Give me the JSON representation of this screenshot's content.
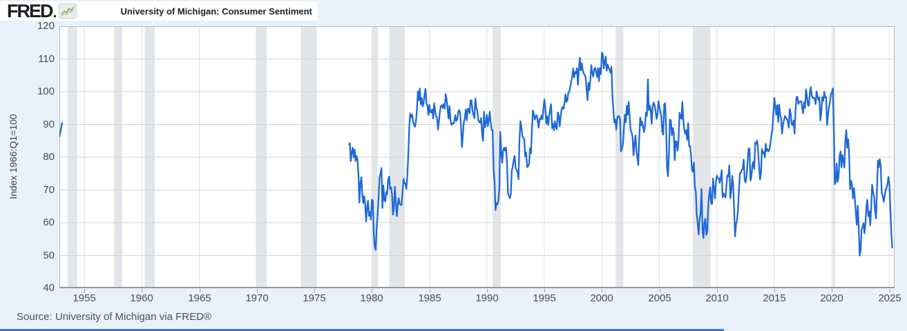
{
  "header": {
    "logo_text": "FRED"
  },
  "legend": {
    "label": "University of Michigan: Consumer Sentiment"
  },
  "footer": {
    "source": "Source: University of Michigan via FRED®"
  },
  "colors": {
    "line": "#1e69d6",
    "recession": "#e3e6e9",
    "grid_h": "#d4d4d4",
    "grid_v": "#e2e2e2",
    "frame": "#b4b8bb",
    "axis": "#94989b",
    "background": "#e9f1fa",
    "plot_background": "#ffffff",
    "spark_line": "#8ca05e"
  },
  "chart_data": {
    "type": "line",
    "title": "University of Michigan: Consumer Sentiment",
    "xlabel": "",
    "ylabel": "Index 1966:Q1=100",
    "x_domain": [
      1952.83,
      2025.45
    ],
    "ylim": [
      40,
      120
    ],
    "y_ticks": [
      40,
      50,
      60,
      70,
      80,
      90,
      100,
      110,
      120
    ],
    "x_ticks": [
      1955,
      1960,
      1965,
      1970,
      1975,
      1980,
      1985,
      1990,
      1995,
      2000,
      2005,
      2010,
      2015,
      2020,
      2025
    ],
    "grid": true,
    "legend_position": "top-left",
    "recessions": [
      [
        1953.54,
        1954.37
      ],
      [
        1957.58,
        1958.29
      ],
      [
        1960.25,
        1961.12
      ],
      [
        1969.92,
        1970.87
      ],
      [
        1973.83,
        1975.21
      ],
      [
        1980.0,
        1980.54
      ],
      [
        1981.5,
        1982.87
      ],
      [
        1990.5,
        1991.21
      ],
      [
        2001.17,
        2001.87
      ],
      [
        2007.92,
        2009.45
      ],
      [
        2020.08,
        2020.29
      ]
    ],
    "series": [
      {
        "name": "University of Michigan: Consumer Sentiment",
        "color": "#1e69d6",
        "segments": [
          {
            "start": 1952.833,
            "step": 0.25,
            "values": [
              86.2,
              90.7
            ]
          },
          {
            "start": 1978.0,
            "step": 0.0833333,
            "values": [
              83.7,
              84.3,
              78.8,
              81.6,
              82.9,
              80.0,
              82.4,
              78.8,
              80.4,
              79.3,
              75.0,
              66.1,
              72.1,
              73.9,
              68.4,
              66.0,
              68.1,
              65.8,
              60.4,
              64.5,
              66.7,
              62.1,
              63.3,
              61.0,
              67.0,
              66.9,
              56.5,
              52.7,
              51.7,
              58.7,
              62.3,
              67.3,
              73.7,
              75.0,
              76.7,
              64.5,
              71.4,
              66.9,
              66.5,
              69.4,
              68.7,
              73.1,
              74.1,
              70.3,
              70.8,
              68.7,
              62.5,
              64.3,
              71.0,
              66.5,
              62.0,
              65.5,
              67.5,
              65.7,
              65.4,
              65.4,
              69.3,
              73.4,
              72.1,
              71.9,
              70.4,
              74.6,
              80.8,
              89.1,
              93.3,
              92.2,
              93.0,
              90.9,
              89.9,
              89.3,
              91.1,
              94.2,
              100.1,
              97.4,
              101.0,
              96.1,
              98.1,
              95.5,
              96.6,
              99.1,
              100.9,
              96.3,
              95.7,
              92.9,
              96.0,
              93.7,
              93.7,
              94.6,
              91.8,
              96.5,
              94.0,
              92.4,
              92.1,
              88.4,
              90.9,
              93.9,
              95.6,
              95.9,
              95.1,
              96.2,
              94.8,
              99.3,
              97.7,
              94.9,
              91.8,
              95.6,
              91.4,
              89.9,
              90.4,
              90.2,
              90.8,
              92.8,
              91.1,
              91.5,
              93.7,
              94.4,
              93.6,
              89.3,
              83.1,
              86.8,
              90.8,
              91.9,
              94.6,
              91.2,
              94.8,
              94.7,
              93.4,
              97.4,
              97.3,
              94.1,
              93.0,
              91.9,
              97.9,
              95.1,
              94.3,
              91.5,
              90.7,
              90.6,
              92.0,
              87.1,
              85.0,
              93.9,
              89.2,
              90.5,
              93.0,
              89.5,
              91.3,
              93.9,
              90.6,
              88.3,
              88.2,
              76.4,
              72.8,
              63.9,
              66.0,
              65.5,
              66.8,
              70.4,
              87.7,
              81.8,
              78.3,
              82.1,
              82.9,
              82.0,
              83.0,
              78.3,
              69.1,
              68.2,
              67.5,
              68.8,
              76.0,
              77.2,
              79.2,
              80.4,
              76.6,
              76.1,
              75.6,
              73.3,
              85.3,
              91.0,
              89.3,
              86.6,
              85.9,
              85.6,
              80.3,
              81.5,
              77.0,
              77.3,
              77.9,
              82.7,
              81.2,
              88.2,
              94.3,
              93.2,
              91.5,
              92.6,
              92.8,
              91.2,
              89.0,
              91.7,
              91.5,
              92.7,
              91.6,
              95.1,
              97.6,
              95.1,
              90.3,
              92.5,
              89.8,
              92.7,
              94.4,
              96.2,
              88.9,
              90.2,
              88.2,
              91.0,
              89.3,
              88.5,
              93.7,
              92.7,
              89.4,
              92.4,
              94.7,
              95.3,
              94.7,
              96.5,
              99.2,
              96.9,
              97.4,
              99.7,
              100.0,
              101.4,
              103.2,
              104.5,
              107.1,
              104.4,
              106.0,
              105.6,
              107.2,
              102.1,
              106.6,
              110.4,
              106.5,
              108.7,
              106.5,
              105.6,
              105.2,
              104.4,
              100.9,
              97.4,
              102.7,
              100.5,
              103.9,
              108.1,
              105.7,
              104.6,
              106.8,
              107.3,
              106.0,
              104.5,
              107.2,
              103.2,
              107.2,
              105.4,
              112.0,
              111.3,
              107.1,
              109.2,
              110.7,
              106.4,
              108.3,
              107.3,
              106.8,
              105.8,
              107.6,
              98.4,
              94.7,
              90.6,
              91.5,
              88.4,
              92.0,
              92.6,
              92.4,
              91.5,
              81.8,
              82.7,
              83.9,
              88.8,
              93.0,
              90.7,
              95.7,
              93.0,
              96.9,
              92.4,
              88.1,
              87.6,
              86.1,
              80.6,
              84.2,
              86.7,
              82.4,
              79.9,
              77.6,
              86.0,
              92.1,
              89.7,
              90.9,
              89.3,
              87.7,
              89.6,
              93.7,
              92.6,
              103.8,
              94.4,
              95.8,
              94.2,
              90.2,
              95.6,
              96.7,
              95.9,
              94.2,
              91.7,
              92.8,
              97.1,
              95.5,
              94.1,
              92.6,
              87.7,
              86.9,
              96.0,
              96.5,
              89.1,
              76.9,
              74.2,
              81.6,
              91.5,
              91.2,
              86.7,
              88.9,
              87.4,
              79.1,
              84.9,
              84.7,
              82.0,
              85.4,
              93.6,
              92.1,
              91.7,
              96.9,
              91.3,
              88.4,
              87.1,
              88.3,
              85.3,
              90.4,
              83.4,
              83.4,
              80.9,
              76.1,
              75.5,
              78.4,
              70.8,
              69.5,
              62.6,
              59.8,
              56.4,
              61.2,
              63.0,
              70.3,
              57.6,
              55.3,
              60.1,
              61.2,
              56.3,
              57.3,
              65.1,
              68.7,
              70.8,
              66.0,
              65.7,
              73.5,
              70.6,
              67.4,
              72.5,
              74.4,
              73.6,
              73.6,
              72.2,
              73.6,
              76.0,
              67.8,
              68.9,
              68.2,
              67.7,
              71.6,
              74.5,
              74.2,
              77.5,
              67.5,
              69.8,
              74.3,
              71.5,
              63.7,
              55.8,
              59.5,
              60.8,
              63.7,
              69.9,
              75.0,
              75.3,
              76.2,
              76.4,
              79.3,
              73.2,
              72.3,
              74.3,
              78.3,
              82.6,
              82.7,
              72.9,
              73.8,
              77.6,
              78.6,
              76.4,
              84.5,
              84.1,
              85.1,
              82.1,
              77.5,
              73.2,
              75.1,
              82.5,
              81.2,
              81.6,
              80.0,
              84.1,
              81.9,
              82.5,
              81.8,
              82.5,
              84.6,
              86.9,
              88.8,
              93.6,
              98.1,
              95.4,
              93.0,
              95.9,
              90.7,
              96.1,
              93.1,
              91.9,
              87.2,
              90.0,
              91.3,
              92.6,
              92.0,
              91.7,
              91.0,
              89.0,
              94.7,
              93.5,
              90.0,
              89.8,
              91.2,
              87.2,
              93.8,
              98.2,
              98.5,
              96.3,
              96.9,
              97.0,
              97.1,
              95.0,
              93.4,
              96.8,
              95.1,
              100.7,
              98.5,
              95.9,
              95.7,
              99.7,
              101.4,
              98.8,
              98.0,
              98.2,
              97.9,
              96.2,
              100.1,
              98.6,
              97.5,
              98.3,
              91.2,
              93.8,
              98.4,
              97.2,
              100.0,
              98.2,
              98.4,
              89.8,
              93.2,
              95.5,
              96.8,
              99.3,
              99.8,
              101.0,
              89.1,
              71.8,
              72.3,
              78.1,
              72.5,
              74.1,
              80.4,
              81.8,
              76.9,
              80.7,
              79.0,
              76.8,
              84.9,
              88.3,
              82.9,
              85.5,
              81.2,
              70.3,
              72.8,
              71.7,
              67.4,
              70.6,
              67.2,
              62.8,
              59.4,
              65.2,
              58.4,
              50.0,
              51.5,
              58.2,
              58.6,
              59.9,
              56.8,
              59.7,
              64.9,
              67.0,
              62.0,
              63.5,
              59.2,
              64.4,
              71.6,
              69.5,
              68.1,
              63.8,
              61.3,
              69.7,
              79.0,
              76.9,
              79.4,
              77.2,
              69.1,
              68.2,
              66.4,
              67.9,
              70.1,
              70.5,
              71.8,
              74.0,
              71.7,
              64.7,
              57.0,
              52.2
            ]
          }
        ]
      }
    ]
  }
}
